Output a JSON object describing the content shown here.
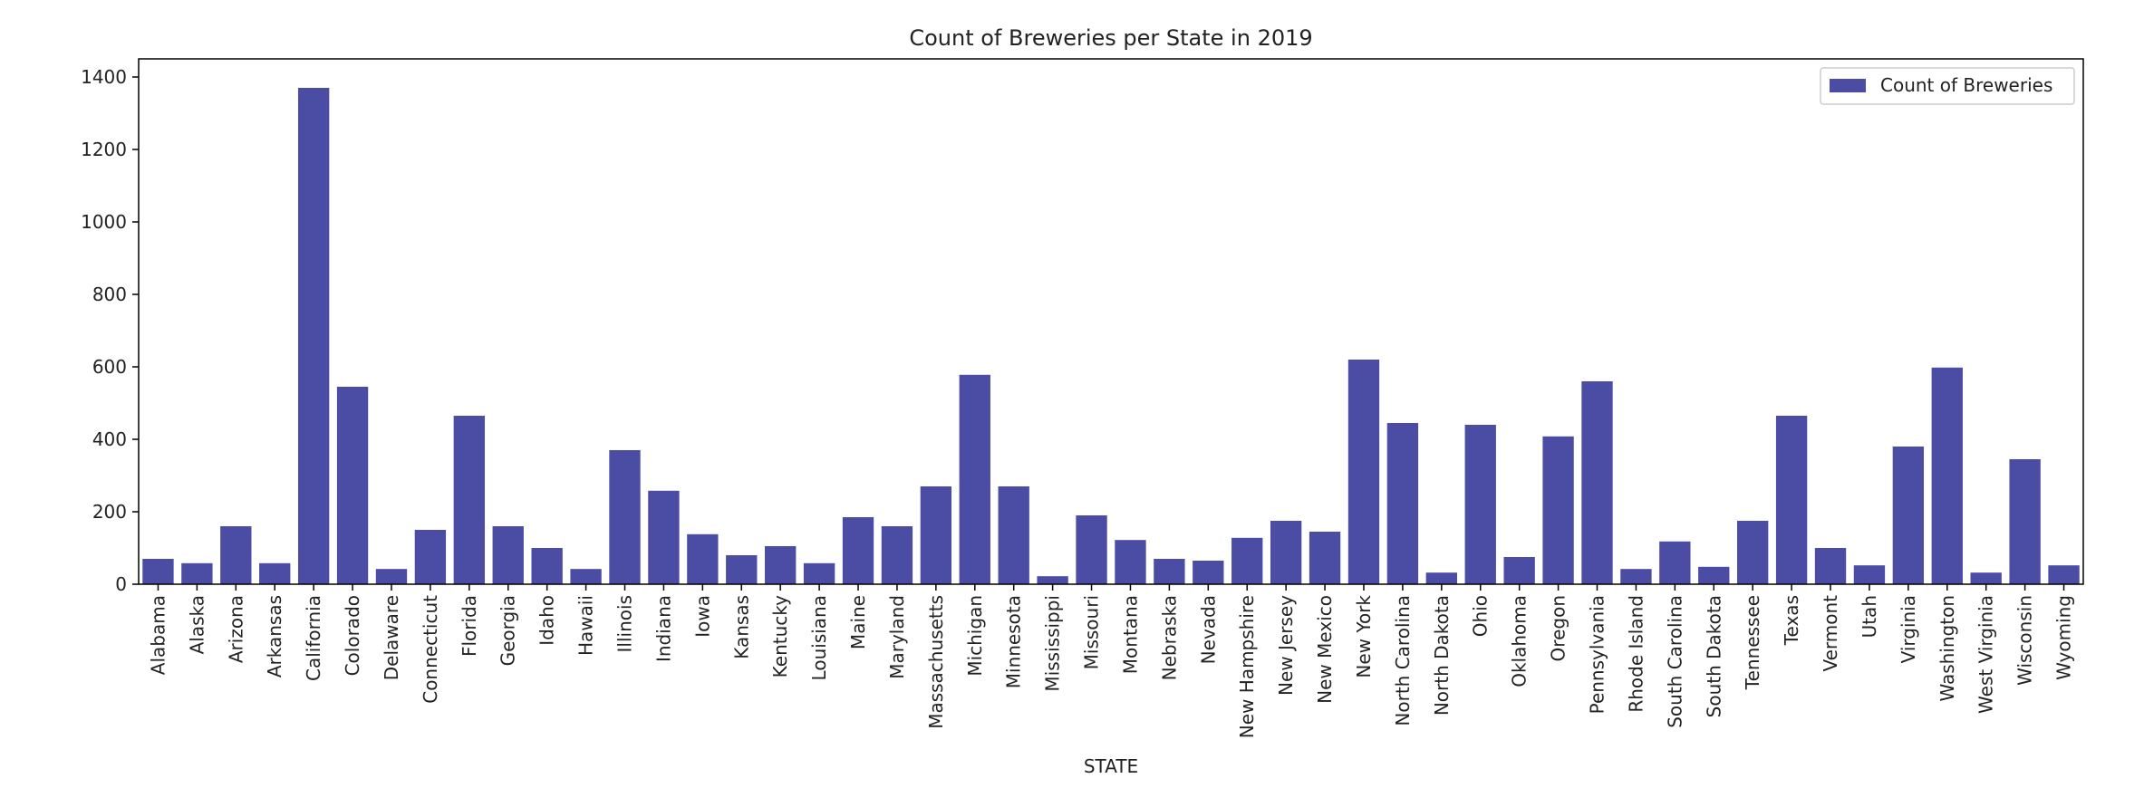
{
  "chart_data": {
    "type": "bar",
    "title": "Count of Breweries per State in 2019",
    "xlabel": "STATE",
    "ylabel": "",
    "ylim": [
      0,
      1450
    ],
    "yticks": [
      0,
      200,
      400,
      600,
      800,
      1000,
      1200,
      1400
    ],
    "grid": false,
    "legend_position": "top-right",
    "categories": [
      "Alabama",
      "Alaska",
      "Arizona",
      "Arkansas",
      "California",
      "Colorado",
      "Delaware",
      "Connecticut",
      "Florida",
      "Georgia",
      "Idaho",
      "Hawaii",
      "Illinois",
      "Indiana",
      "Iowa",
      "Kansas",
      "Kentucky",
      "Louisiana",
      "Maine",
      "Maryland",
      "Massachusetts",
      "Michigan",
      "Minnesota",
      "Mississippi",
      "Missouri",
      "Montana",
      "Nebraska",
      "Nevada",
      "New Hampshire",
      "New Jersey",
      "New Mexico",
      "New York",
      "North Carolina",
      "North Dakota",
      "Ohio",
      "Oklahoma",
      "Oregon",
      "Pennsylvania",
      "Rhode Island",
      "South Carolina",
      "South Dakota",
      "Tennessee",
      "Texas",
      "Vermont",
      "Utah",
      "Virginia",
      "Washington",
      "West Virginia",
      "Wisconsin",
      "Wyoming"
    ],
    "series": [
      {
        "name": "Count of Breweries",
        "color": "#4b4da4",
        "values": [
          70,
          58,
          160,
          58,
          1370,
          545,
          42,
          150,
          465,
          160,
          100,
          42,
          370,
          258,
          138,
          80,
          105,
          58,
          185,
          160,
          270,
          578,
          270,
          22,
          190,
          122,
          70,
          65,
          128,
          175,
          145,
          620,
          445,
          32,
          440,
          75,
          408,
          560,
          42,
          118,
          48,
          175,
          465,
          100,
          52,
          380,
          598,
          32,
          345,
          52
        ]
      }
    ]
  }
}
